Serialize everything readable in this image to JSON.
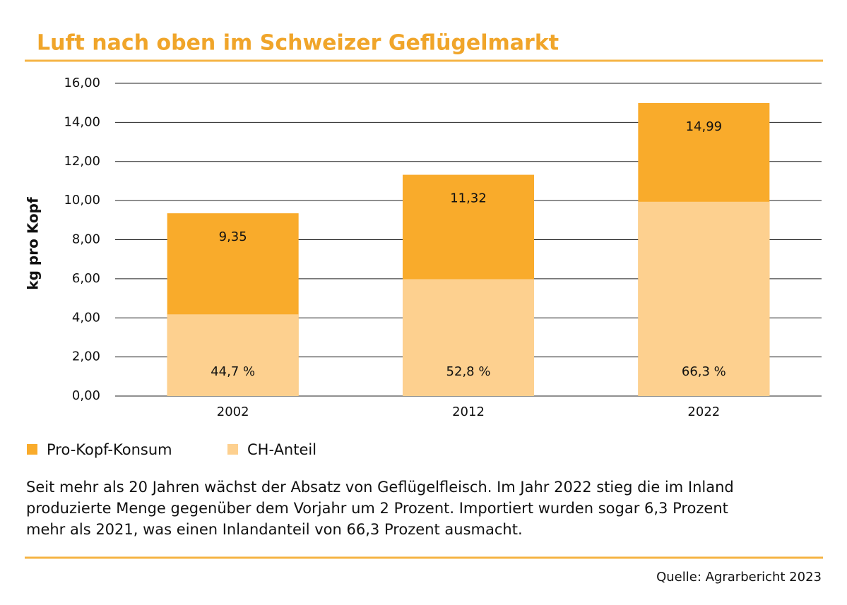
{
  "chart_data": {
    "type": "bar",
    "title": "Luft nach oben im Schweizer Geflügelmarkt",
    "ylabel": "kg pro Kopf",
    "categories": [
      "2002",
      "2012",
      "2022"
    ],
    "overlap": true,
    "series": [
      {
        "name": "Pro-Kopf-Konsum",
        "color": "#f9ab2b",
        "values": [
          9.35,
          11.32,
          14.99
        ],
        "value_labels": [
          "9,35",
          "11,32",
          "14,99"
        ]
      },
      {
        "name": "CH-Anteil",
        "color": "#fdd08f",
        "values": [
          4.18,
          5.98,
          9.94
        ]
      }
    ],
    "annotations": [
      "44,7 %",
      "52,8 %",
      "66,3 %"
    ],
    "ylim": [
      0,
      16
    ],
    "yticks": [
      {
        "value": 0,
        "label": "0,00"
      },
      {
        "value": 2,
        "label": "2,00"
      },
      {
        "value": 4,
        "label": "4,00"
      },
      {
        "value": 6,
        "label": "6,00"
      },
      {
        "value": 8,
        "label": "8,00"
      },
      {
        "value": 10,
        "label": "10,00"
      },
      {
        "value": 12,
        "label": "12,00"
      },
      {
        "value": 14,
        "label": "14,00"
      },
      {
        "value": 16,
        "label": "16,00"
      }
    ],
    "grid": true,
    "description": [
      "Seit mehr als 20 Jahren wächst der Absatz von Geflügelfleisch. Im Jahr 2022 stieg die im Inland",
      "produzierte Menge gegenüber dem Vorjahr um 2 Prozent. Importiert wurden sogar 6,3 Prozent",
      "mehr als 2021, was einen Inlandanteil von 66,3 Prozent ausmacht."
    ],
    "source": "Quelle: Agrarbericht 2023"
  }
}
